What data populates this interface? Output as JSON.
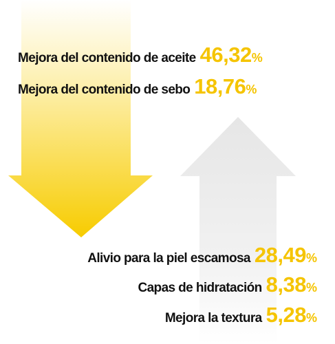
{
  "items": [
    {
      "label": "Mejora del contenido de aceite",
      "value": "46,32",
      "unit": "%"
    },
    {
      "label": "Mejora del contenido de sebo",
      "value": "18,76",
      "unit": "%"
    },
    {
      "label": "Alivio para la piel escamosa",
      "value": "28,49",
      "unit": "%"
    },
    {
      "label": "Capas de hidratación",
      "value": "8,38",
      "unit": "%"
    },
    {
      "label": "Mejora la textura",
      "value": "5,28",
      "unit": "%"
    }
  ]
}
